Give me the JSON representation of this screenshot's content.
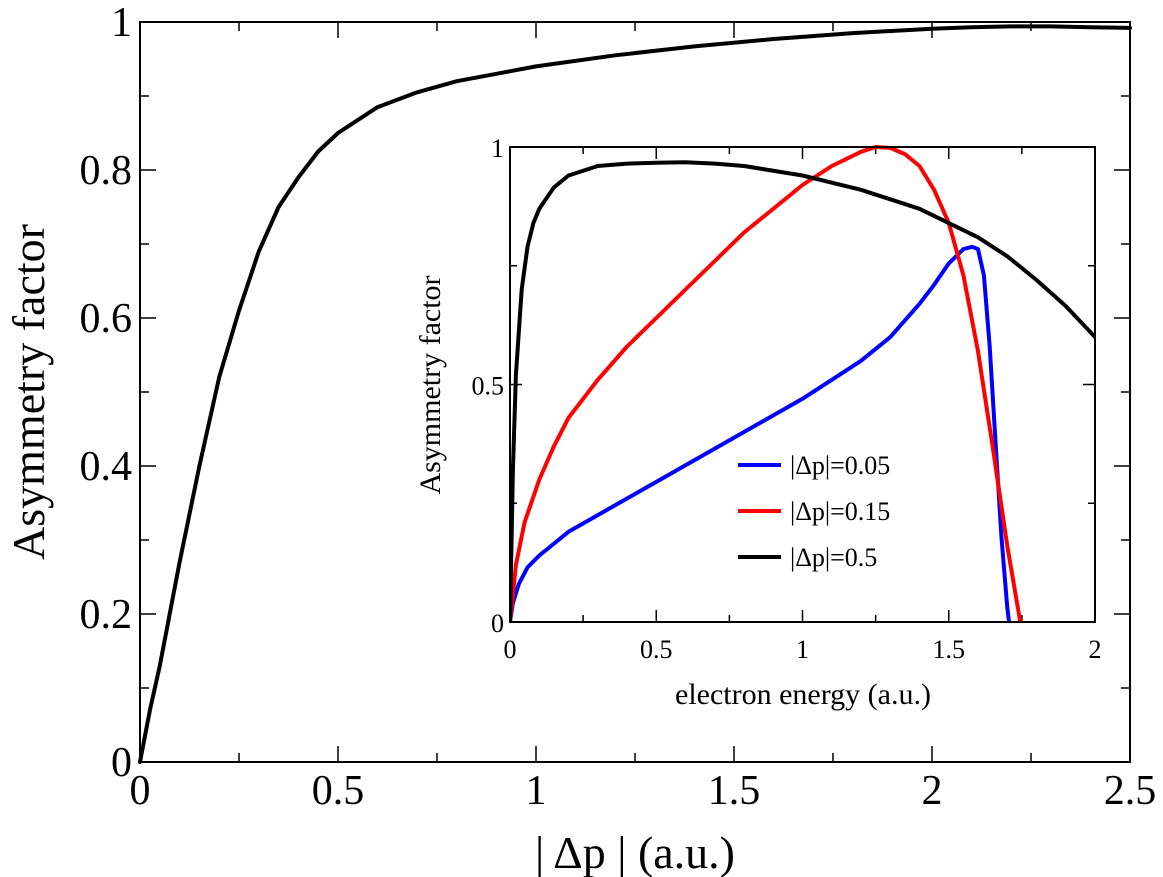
{
  "chart_data": [
    {
      "type": "line",
      "name": "main",
      "xlabel": "| Δp | (a.u.)",
      "ylabel": "Asymmetry factor",
      "xlim": [
        0,
        2.5
      ],
      "ylim": [
        0,
        1
      ],
      "x_ticks": [
        0,
        0.5,
        1,
        1.5,
        2,
        2.5
      ],
      "x_tick_labels": [
        "0",
        "0.5",
        "1",
        "1.5",
        "2",
        "2.5"
      ],
      "y_ticks": [
        0,
        0.2,
        0.4,
        0.6,
        0.8,
        1
      ],
      "y_tick_labels": [
        "0",
        "0.2",
        "0.4",
        "0.6",
        "0.8",
        "1"
      ],
      "series": [
        {
          "name": "asymmetry factor",
          "color": "#000000",
          "x": [
            0,
            0.025,
            0.05,
            0.1,
            0.15,
            0.2,
            0.25,
            0.3,
            0.35,
            0.4,
            0.45,
            0.5,
            0.6,
            0.7,
            0.8,
            0.9,
            1.0,
            1.2,
            1.4,
            1.6,
            1.8,
            2.0,
            2.1,
            2.2,
            2.3,
            2.4,
            2.5
          ],
          "y": [
            0,
            0.07,
            0.13,
            0.27,
            0.4,
            0.52,
            0.61,
            0.69,
            0.75,
            0.79,
            0.825,
            0.85,
            0.885,
            0.905,
            0.92,
            0.93,
            0.94,
            0.955,
            0.967,
            0.977,
            0.985,
            0.991,
            0.993,
            0.994,
            0.994,
            0.993,
            0.992
          ]
        }
      ]
    },
    {
      "type": "line",
      "name": "inset",
      "xlabel": "electron energy (a.u.)",
      "ylabel": "Asymmetry factor",
      "xlim": [
        0,
        2
      ],
      "ylim": [
        0,
        1
      ],
      "x_ticks": [
        0,
        0.5,
        1,
        1.5,
        2
      ],
      "x_tick_labels": [
        "0",
        "0.5",
        "1",
        "1.5",
        "2"
      ],
      "y_ticks": [
        0,
        0.5,
        1
      ],
      "y_tick_labels": [
        "0",
        "0.5",
        "1"
      ],
      "legend": "center-right",
      "series": [
        {
          "name": "|Δp|=0.05",
          "color": "#0000ff",
          "x": [
            0,
            0.01,
            0.03,
            0.06,
            0.1,
            0.2,
            0.3,
            0.4,
            0.5,
            0.6,
            0.7,
            0.8,
            0.9,
            1.0,
            1.1,
            1.2,
            1.3,
            1.4,
            1.45,
            1.5,
            1.55,
            1.58,
            1.6,
            1.62,
            1.64,
            1.66,
            1.68,
            1.7,
            1.71
          ],
          "y": [
            0,
            0.04,
            0.08,
            0.115,
            0.14,
            0.19,
            0.225,
            0.26,
            0.295,
            0.33,
            0.365,
            0.4,
            0.435,
            0.47,
            0.51,
            0.55,
            0.6,
            0.67,
            0.71,
            0.755,
            0.785,
            0.79,
            0.785,
            0.73,
            0.58,
            0.38,
            0.18,
            0.03,
            -0.02
          ]
        },
        {
          "name": "|Δp|=0.15",
          "color": "#ff0000",
          "x": [
            0,
            0.02,
            0.05,
            0.1,
            0.15,
            0.2,
            0.3,
            0.4,
            0.5,
            0.6,
            0.7,
            0.8,
            0.9,
            1.0,
            1.1,
            1.2,
            1.25,
            1.3,
            1.35,
            1.4,
            1.45,
            1.5,
            1.55,
            1.6,
            1.65,
            1.7,
            1.75
          ],
          "y": [
            0,
            0.12,
            0.21,
            0.3,
            0.37,
            0.43,
            0.51,
            0.58,
            0.64,
            0.7,
            0.76,
            0.82,
            0.87,
            0.92,
            0.96,
            0.99,
            1.0,
            0.998,
            0.985,
            0.96,
            0.91,
            0.84,
            0.73,
            0.57,
            0.37,
            0.16,
            -0.02
          ]
        },
        {
          "name": "|Δp|=0.5",
          "color": "#000000",
          "x": [
            0,
            0.01,
            0.02,
            0.04,
            0.06,
            0.08,
            0.1,
            0.15,
            0.2,
            0.3,
            0.4,
            0.5,
            0.6,
            0.7,
            0.8,
            1.0,
            1.2,
            1.4,
            1.6,
            1.7,
            1.8,
            1.9,
            2.0
          ],
          "y": [
            0,
            0.32,
            0.52,
            0.7,
            0.79,
            0.84,
            0.87,
            0.915,
            0.94,
            0.96,
            0.965,
            0.967,
            0.968,
            0.965,
            0.96,
            0.94,
            0.91,
            0.87,
            0.81,
            0.77,
            0.72,
            0.665,
            0.6
          ]
        }
      ]
    }
  ]
}
